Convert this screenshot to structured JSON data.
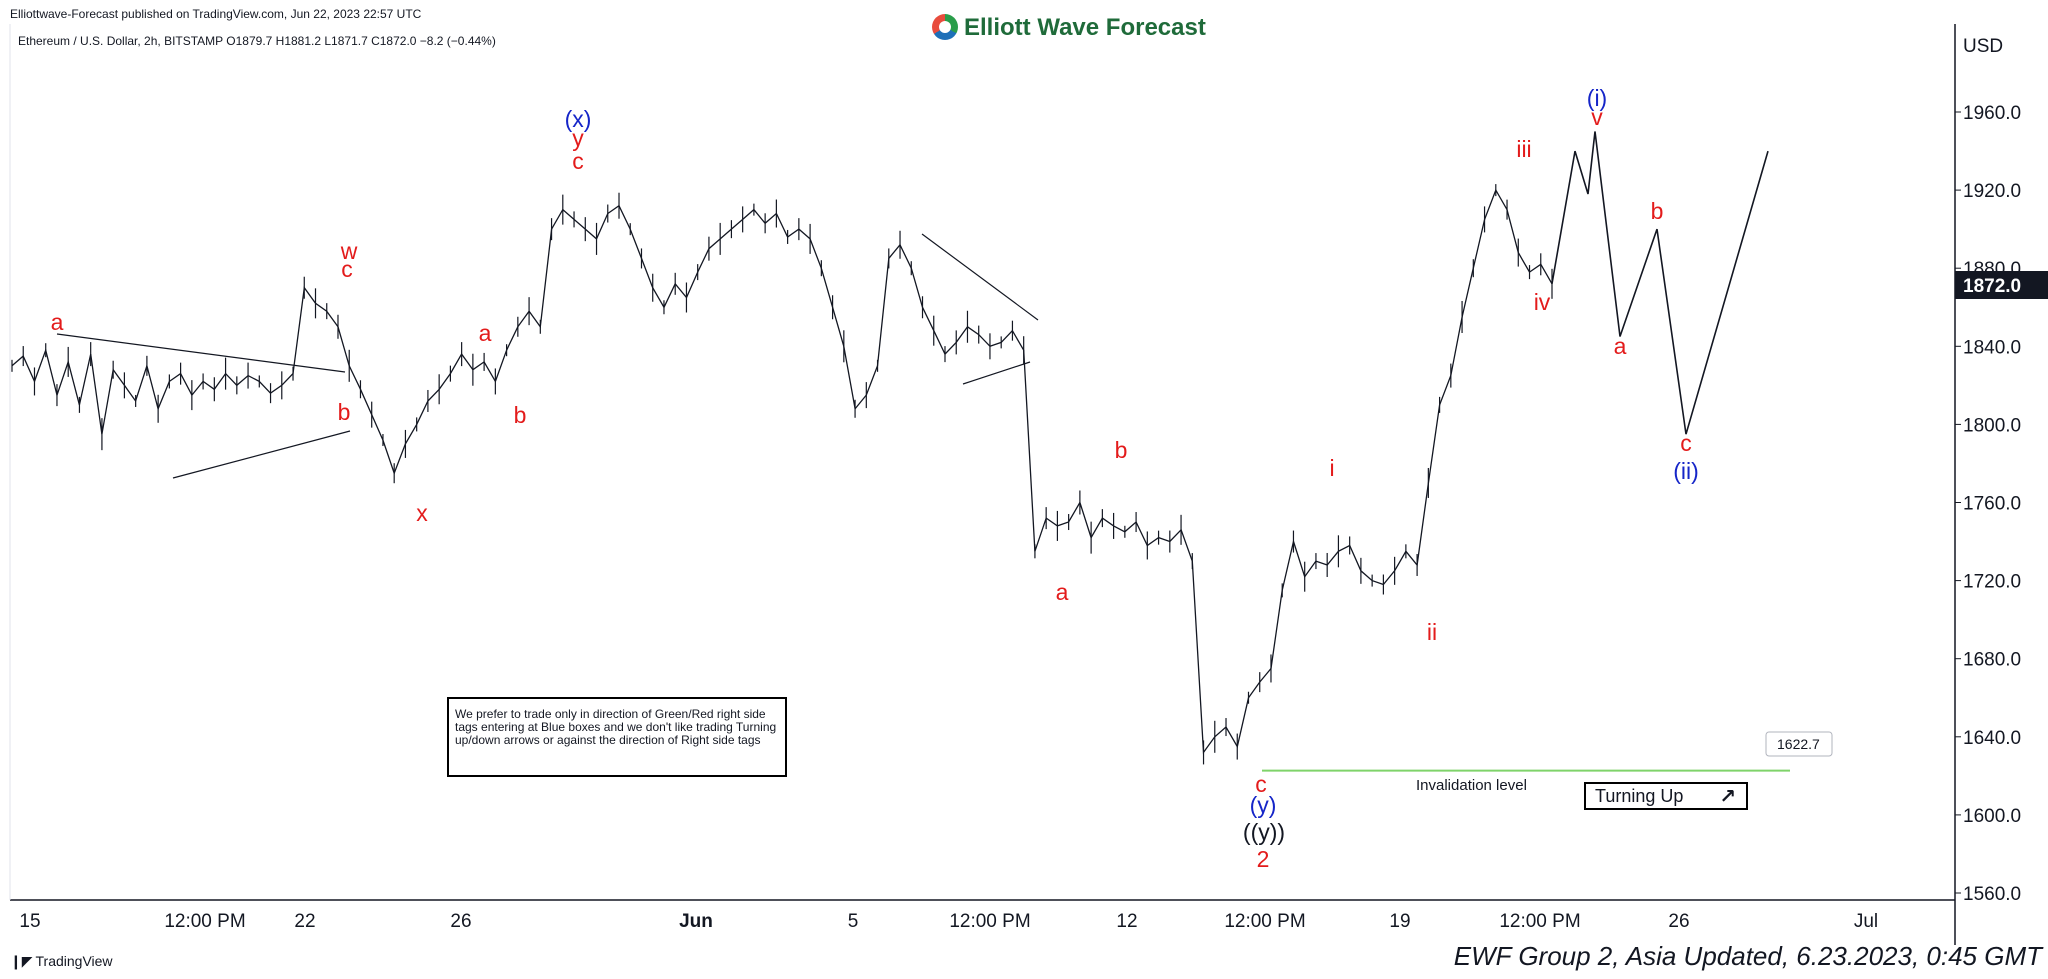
{
  "header": {
    "published": "Elliottwave-Forecast published on TradingView.com, Jun 22, 2023 22:57 UTC",
    "symbol_line": "Ethereum / U.S. Dollar, 2h, BITSTAMP  O1879.7  H1881.2  L1871.7  C1872.0  −8.2 (−0.44%)",
    "brand": "Elliott Wave Forecast"
  },
  "note": {
    "text": "We prefer to trade only in direction of Green/Red right side tags entering at Blue boxes and we don't like trading Turning up/down arrows or against the direction of Right side tags"
  },
  "turning": {
    "label": "Turning Up",
    "arrow": "↗"
  },
  "footer": {
    "tradingview": "TradingView",
    "update": "EWF Group 2, Asia Updated, 6.23.2023, 0:45 GMT"
  },
  "colors": {
    "wave_red": "#e31b1b",
    "wave_blue": "#1525c8",
    "invalidation_green": "#7fd36a",
    "price_tag_bg": "#131722"
  },
  "chart_data": {
    "type": "line",
    "title": "Ethereum / U.S. Dollar, 2h, BITSTAMP",
    "currency_label": "USD",
    "ylim": [
      1550,
      1990
    ],
    "y_ticks": [
      "1960.0",
      "1920.0",
      "1880.0",
      "1840.0",
      "1800.0",
      "1760.0",
      "1720.0",
      "1680.0",
      "1640.0",
      "1600.0",
      "1560.0"
    ],
    "x_ticks": [
      "15",
      "12:00 PM",
      "22",
      "26",
      "Jun",
      "5",
      "12:00 PM",
      "12",
      "12:00 PM",
      "19",
      "12:00 PM",
      "26",
      "Jul"
    ],
    "last_price": "1872.0",
    "invalidation": {
      "value": 1622.7,
      "label": "Invalidation level",
      "tag": "1622.7"
    },
    "series": [
      {
        "values": [
          1830,
          1835,
          1822,
          1838,
          1815,
          1832,
          1810,
          1836,
          1795,
          1828,
          1820,
          1812,
          1830,
          1808,
          1822,
          1826,
          1815,
          1822,
          1818,
          1826,
          1820,
          1825,
          1822,
          1816,
          1820,
          1826,
          1870,
          1862,
          1858,
          1850,
          1830,
          1818,
          1805,
          1792,
          1775,
          1790,
          1800,
          1812,
          1818,
          1826,
          1836,
          1828,
          1832,
          1822,
          1838,
          1850,
          1858,
          1850,
          1900,
          1910,
          1905,
          1900,
          1895,
          1908,
          1912,
          1900,
          1885,
          1870,
          1860,
          1872,
          1865,
          1878,
          1890,
          1895,
          1900,
          1905,
          1910,
          1903,
          1908,
          1896,
          1900,
          1895,
          1880,
          1860,
          1840,
          1808,
          1815,
          1830,
          1885,
          1892,
          1880,
          1860,
          1848,
          1836,
          1842,
          1850,
          1846,
          1840,
          1842,
          1848,
          1838,
          1735,
          1752,
          1748,
          1750,
          1760,
          1742,
          1752,
          1748,
          1745,
          1750,
          1738,
          1742,
          1740,
          1746,
          1730,
          1632,
          1640,
          1645,
          1635,
          1660,
          1668,
          1675,
          1715,
          1740,
          1722,
          1730,
          1728,
          1735,
          1738,
          1725,
          1720,
          1718,
          1725,
          1735,
          1728,
          1770,
          1810,
          1825,
          1855,
          1880,
          1905,
          1920,
          1910,
          1888,
          1878,
          1882,
          1872
        ]
      }
    ],
    "wave_labels": [
      {
        "text": "a",
        "color": "red"
      },
      {
        "text": "b",
        "color": "red"
      },
      {
        "text": "w",
        "color": "red"
      },
      {
        "text": "c",
        "color": "red"
      },
      {
        "text": "x",
        "color": "red"
      },
      {
        "text": "a",
        "color": "red"
      },
      {
        "text": "b",
        "color": "red"
      },
      {
        "text": "(x)",
        "color": "blue"
      },
      {
        "text": "y",
        "color": "red"
      },
      {
        "text": "c",
        "color": "red"
      },
      {
        "text": "b",
        "color": "red"
      },
      {
        "text": "a",
        "color": "red"
      },
      {
        "text": "c",
        "color": "red"
      },
      {
        "text": "(y)",
        "color": "blue"
      },
      {
        "text": "((y))",
        "color": "black"
      },
      {
        "text": "2",
        "color": "red"
      },
      {
        "text": "i",
        "color": "red"
      },
      {
        "text": "ii",
        "color": "red"
      },
      {
        "text": "iii",
        "color": "red"
      },
      {
        "text": "iv",
        "color": "red"
      },
      {
        "text": "(i)",
        "color": "blue"
      },
      {
        "text": "v",
        "color": "red"
      },
      {
        "text": "a",
        "color": "red"
      },
      {
        "text": "b",
        "color": "red"
      },
      {
        "text": "c",
        "color": "red"
      },
      {
        "text": "(ii)",
        "color": "blue"
      }
    ],
    "projection": [
      1872,
      1940,
      1918,
      1950,
      1845,
      1900,
      1795,
      1940
    ]
  }
}
